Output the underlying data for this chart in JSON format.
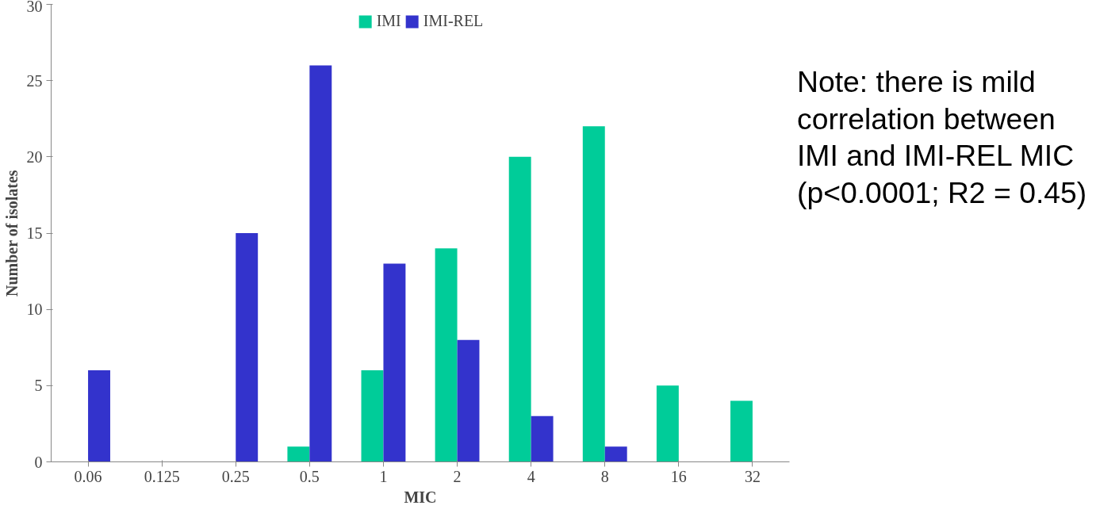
{
  "chart_data": {
    "type": "bar",
    "xlabel": "MIC",
    "ylabel": "Number of isolates",
    "categories": [
      "0.06",
      "0.125",
      "0.25",
      "0.5",
      "1",
      "2",
      "4",
      "8",
      "16",
      "32"
    ],
    "series": [
      {
        "name": "IMI",
        "color": "#00cc99",
        "values": [
          0,
          0,
          0,
          1,
          6,
          14,
          20,
          22,
          5,
          4
        ]
      },
      {
        "name": "IMI-REL",
        "color": "#3333cc",
        "values": [
          6,
          0,
          15,
          26,
          13,
          8,
          3,
          1,
          0,
          0
        ]
      }
    ],
    "ylim": [
      0,
      30
    ],
    "yticks": [
      0,
      5,
      10,
      15,
      20,
      25,
      30
    ],
    "grid": false,
    "legend": "top",
    "annotations": [
      "Note: there is mild correlation between IMI and IMI-REL MIC (p<0.0001; R2 = 0.45)"
    ]
  }
}
